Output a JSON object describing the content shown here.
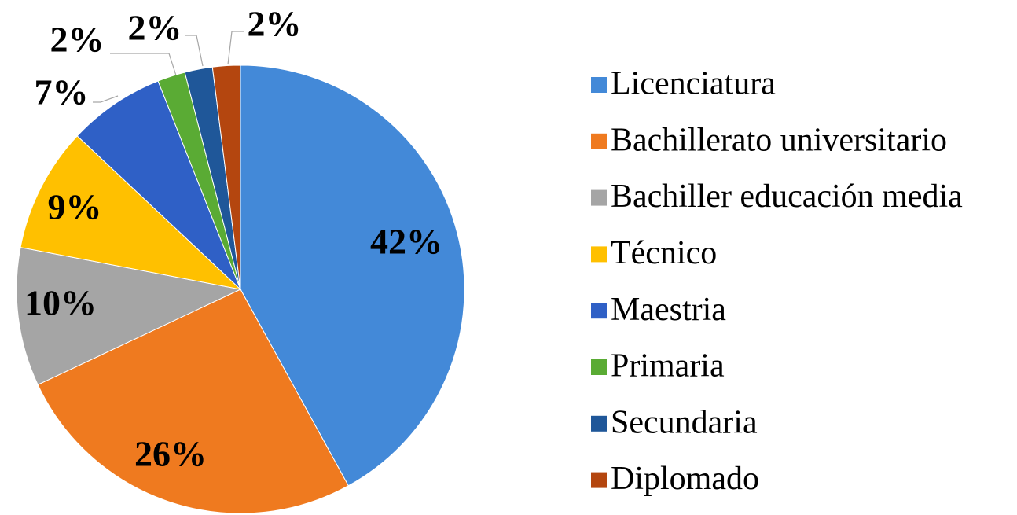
{
  "chart_data": {
    "type": "pie",
    "categories": [
      "Licenciatura",
      "Bachillerato universitario",
      "Bachiller educación media",
      "Técnico",
      "Maestria",
      "Primaria",
      "Secundaria",
      "Diplomado"
    ],
    "values": [
      42,
      26,
      10,
      9,
      7,
      2,
      2,
      2
    ],
    "value_labels": [
      "42%",
      "26%",
      "10%",
      "9%",
      "7%",
      "2%",
      "2%",
      "2%"
    ],
    "colors": [
      "#4389d8",
      "#ef7a1f",
      "#a5a5a5",
      "#ffc000",
      "#2f60c6",
      "#5aab34",
      "#1f5799",
      "#b4460f"
    ],
    "legend": "right"
  }
}
